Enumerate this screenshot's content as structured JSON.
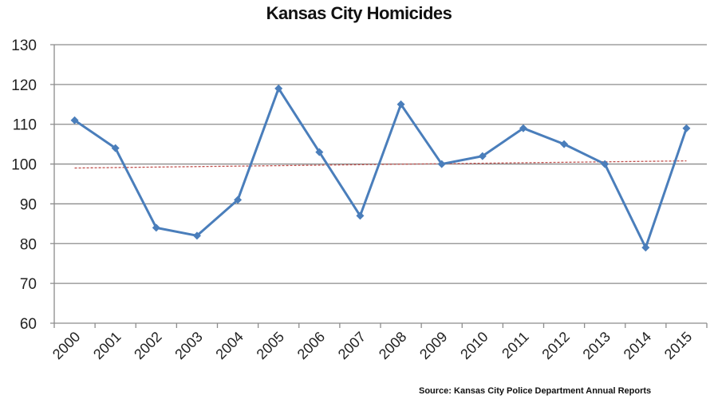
{
  "chart_data": {
    "type": "line",
    "title": "Kansas City Homicides",
    "xlabel": "",
    "ylabel": "",
    "categories": [
      "2000",
      "2001",
      "2002",
      "2003",
      "2004",
      "2005",
      "2006",
      "2007",
      "2008",
      "2009",
      "2010",
      "2011",
      "2012",
      "2013",
      "2014",
      "2015"
    ],
    "series": [
      {
        "name": "Homicides",
        "values": [
          111,
          104,
          84,
          82,
          91,
          119,
          103,
          87,
          115,
          100,
          102,
          109,
          105,
          100,
          79,
          109
        ],
        "color": "#4a7ebb",
        "marker": "diamond"
      },
      {
        "name": "Linear trend",
        "values": [
          99.0,
          99.1,
          99.2,
          99.4,
          99.5,
          99.6,
          99.7,
          99.8,
          100.0,
          100.1,
          100.2,
          100.3,
          100.4,
          100.5,
          100.7,
          100.8
        ],
        "color": "#c0504d",
        "style": "dashed"
      }
    ],
    "ylim": [
      60,
      130
    ],
    "yticks": [
      60,
      70,
      80,
      90,
      100,
      110,
      120,
      130
    ],
    "grid": true,
    "legend": "none",
    "source": "Source: Kansas City Police Department Annual Reports"
  }
}
